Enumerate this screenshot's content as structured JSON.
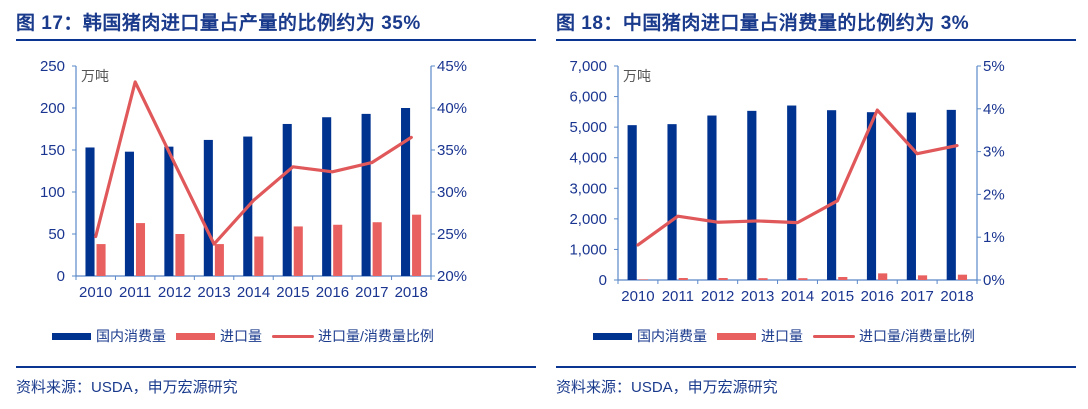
{
  "colors": {
    "domestic": "#003290",
    "imports": "#e86060",
    "ratio": "#e0585a",
    "axis": "#5a88c8",
    "title": "#1a3a8c"
  },
  "chart_data": [
    {
      "type": "bar+line",
      "title": "图 17：韩国猪肉进口量占产量的比例约为 35%",
      "unit_label": "万吨",
      "categories": [
        "2010",
        "2011",
        "2012",
        "2013",
        "2014",
        "2015",
        "2016",
        "2017",
        "2018"
      ],
      "left_axis": {
        "ylim": [
          0,
          250
        ],
        "ticks": [
          "0",
          "50",
          "100",
          "150",
          "200",
          "250"
        ],
        "tick_values": [
          0,
          50,
          100,
          150,
          200,
          250
        ]
      },
      "right_axis": {
        "ylim": [
          20,
          45
        ],
        "ticks": [
          "20%",
          "25%",
          "30%",
          "35%",
          "40%",
          "45%"
        ],
        "tick_values": [
          20,
          25,
          30,
          35,
          40,
          45
        ]
      },
      "series": [
        {
          "name": "国内消费量",
          "type": "bar",
          "axis": "left",
          "values": [
            153,
            148,
            154,
            162,
            166,
            181,
            189,
            193,
            200
          ]
        },
        {
          "name": "进口量",
          "type": "bar",
          "axis": "left",
          "values": [
            38,
            63,
            50,
            38,
            47,
            59,
            61,
            64,
            73
          ]
        },
        {
          "name": "进口量/消费量比例",
          "type": "line",
          "axis": "right",
          "values": [
            24.7,
            43.1,
            33.4,
            23.8,
            29.0,
            33.0,
            32.4,
            33.5,
            36.5
          ]
        }
      ],
      "legend": [
        "国内消费量",
        "进口量",
        "进口量/消费量比例"
      ],
      "source": "资料来源：USDA，申万宏源研究"
    },
    {
      "type": "bar+line",
      "title": "图 18：中国猪肉进口量占消费量的比例约为 3%",
      "unit_label": "万吨",
      "categories": [
        "2010",
        "2011",
        "2012",
        "2013",
        "2014",
        "2015",
        "2016",
        "2017",
        "2018"
      ],
      "left_axis": {
        "ylim": [
          0,
          7000
        ],
        "ticks": [
          "0",
          "1,000",
          "2,000",
          "3,000",
          "4,000",
          "5,000",
          "6,000",
          "7,000"
        ],
        "tick_values": [
          0,
          1000,
          2000,
          3000,
          4000,
          5000,
          6000,
          7000
        ]
      },
      "right_axis": {
        "ylim": [
          0,
          5
        ],
        "ticks": [
          "0%",
          "1%",
          "2%",
          "3%",
          "4%",
          "5%"
        ],
        "tick_values": [
          0,
          1,
          2,
          3,
          4,
          5
        ]
      },
      "series": [
        {
          "name": "国内消费量",
          "type": "bar",
          "axis": "left",
          "values": [
            5065,
            5098,
            5380,
            5533,
            5707,
            5554,
            5489,
            5478,
            5565
          ]
        },
        {
          "name": "进口量",
          "type": "bar",
          "axis": "left",
          "values": [
            20,
            65,
            65,
            60,
            60,
            98,
            217,
            152,
            174
          ]
        },
        {
          "name": "进口量/消费量比例",
          "type": "line",
          "axis": "right",
          "values": [
            0.82,
            1.49,
            1.35,
            1.38,
            1.34,
            1.85,
            3.97,
            2.95,
            3.14
          ]
        }
      ],
      "legend": [
        "国内消费量",
        "进口量",
        "进口量/消费量比例"
      ],
      "source": "资料来源：USDA，申万宏源研究"
    }
  ]
}
